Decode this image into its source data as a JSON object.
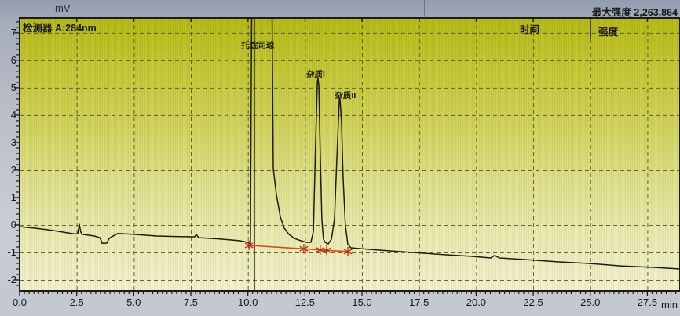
{
  "header": {
    "y_unit": "mV",
    "detector_label": "检测器 A:284nm",
    "max_intensity_label": "最大强度",
    "max_intensity_value": "2,263,864",
    "col_time": "时间",
    "col_intensity": "强度"
  },
  "axis": {
    "x_unit_label": "min"
  },
  "colors": {
    "trace": "#1c1c14",
    "grid": "#4f4f1c",
    "frame": "#1b1b12",
    "integration_line": "#d2491a",
    "integration_mark": "#c02812",
    "cursor": "#2c2c22"
  },
  "chart_data": {
    "type": "line",
    "title": "检测器 A:284nm",
    "xlabel": "min",
    "ylabel": "mV",
    "xlim": [
      0,
      28.93
    ],
    "ylim": [
      -2.4,
      7.54
    ],
    "grid": "dashed",
    "legend_position": "none",
    "x_major_ticks": [
      0,
      2.5,
      5,
      7.5,
      10,
      12.5,
      15,
      17.5,
      20,
      22.5,
      25,
      27.5
    ],
    "x_tick_labels": [
      "0.0",
      "2.5",
      "5.0",
      "7.5",
      "10.0",
      "12.5",
      "15.0",
      "17.5",
      "20.0",
      "22.5",
      "25.0",
      "27.5"
    ],
    "y_major_ticks": [
      7,
      6,
      5,
      4,
      3,
      2,
      1,
      0,
      -1,
      -2
    ],
    "y_tick_labels": [
      "7",
      "6",
      "5",
      "4",
      "3",
      "2",
      "1",
      "0",
      "-1",
      "-2"
    ],
    "x_minor_step": 0.2083,
    "y_minor_step": 0.2,
    "max_intensity_display": "2,263,864",
    "cursor_time_min": 10.29,
    "peaks": [
      {
        "name": "托烷司琼",
        "apex_time_min": 10.4,
        "apex_mV": 9.9,
        "clipped_offscale": true
      },
      {
        "name": "杂质I",
        "apex_time_min": 13.07,
        "apex_mV": 5.34,
        "clipped_offscale": false
      },
      {
        "name": "杂质II",
        "apex_time_min": 14.03,
        "apex_mV": 4.63,
        "clipped_offscale": false
      }
    ],
    "integration_baseline": {
      "start_time_min": 10.05,
      "start_mV": -0.74,
      "end_time_min": 14.38,
      "end_mV": -0.97,
      "marks_time_min": [
        10.05,
        12.45,
        13.17,
        13.45,
        14.38
      ]
    },
    "trace": [
      [
        0,
        -0.06
      ],
      [
        0.6,
        -0.11
      ],
      [
        1.2,
        -0.17
      ],
      [
        1.7,
        -0.23
      ],
      [
        2.13,
        -0.29
      ],
      [
        2.45,
        -0.33
      ],
      [
        2.55,
        -0.31
      ],
      [
        2.61,
        0.03
      ],
      [
        2.68,
        -0.26
      ],
      [
        2.75,
        -0.34
      ],
      [
        3.0,
        -0.37
      ],
      [
        3.27,
        -0.4
      ],
      [
        3.51,
        -0.46
      ],
      [
        3.57,
        -0.56
      ],
      [
        3.61,
        -0.66
      ],
      [
        3.82,
        -0.66
      ],
      [
        3.9,
        -0.52
      ],
      [
        3.96,
        -0.46
      ],
      [
        4.3,
        -0.31
      ],
      [
        5.0,
        -0.34
      ],
      [
        6.0,
        -0.4
      ],
      [
        7.0,
        -0.42
      ],
      [
        7.67,
        -0.43
      ],
      [
        7.74,
        -0.34
      ],
      [
        7.84,
        -0.46
      ],
      [
        8.77,
        -0.51
      ],
      [
        9.63,
        -0.57
      ],
      [
        9.98,
        -0.63
      ],
      [
        10.11,
        -0.69
      ],
      [
        10.18,
        9.9
      ],
      [
        11.04,
        9.9
      ],
      [
        11.11,
        2.06
      ],
      [
        11.25,
        1.11
      ],
      [
        11.42,
        0.29
      ],
      [
        11.59,
        -0.11
      ],
      [
        11.8,
        -0.34
      ],
      [
        12.04,
        -0.49
      ],
      [
        12.31,
        -0.57
      ],
      [
        12.56,
        -0.63
      ],
      [
        12.76,
        -0.63
      ],
      [
        12.87,
        -0.23
      ],
      [
        12.97,
        3.06
      ],
      [
        13.04,
        5.2
      ],
      [
        13.07,
        5.34
      ],
      [
        13.11,
        5.06
      ],
      [
        13.17,
        2.49
      ],
      [
        13.24,
        0.2
      ],
      [
        13.31,
        -0.51
      ],
      [
        13.38,
        -0.63
      ],
      [
        13.52,
        -0.69
      ],
      [
        13.66,
        -0.51
      ],
      [
        13.79,
        0.2
      ],
      [
        13.9,
        2.49
      ],
      [
        14.0,
        4.49
      ],
      [
        14.03,
        4.63
      ],
      [
        14.1,
        3.77
      ],
      [
        14.17,
        1.77
      ],
      [
        14.27,
        0.0
      ],
      [
        14.38,
        -0.71
      ],
      [
        14.51,
        -0.83
      ],
      [
        14.96,
        -0.86
      ],
      [
        15.65,
        -0.91
      ],
      [
        16.68,
        -0.97
      ],
      [
        17.72,
        -1.03
      ],
      [
        18.75,
        -1.09
      ],
      [
        19.78,
        -1.14
      ],
      [
        20.64,
        -1.2
      ],
      [
        20.81,
        -1.11
      ],
      [
        21.02,
        -1.2
      ],
      [
        22.19,
        -1.26
      ],
      [
        23.56,
        -1.34
      ],
      [
        24.94,
        -1.4
      ],
      [
        26.31,
        -1.49
      ],
      [
        27.69,
        -1.54
      ],
      [
        28.93,
        -1.6
      ]
    ]
  }
}
